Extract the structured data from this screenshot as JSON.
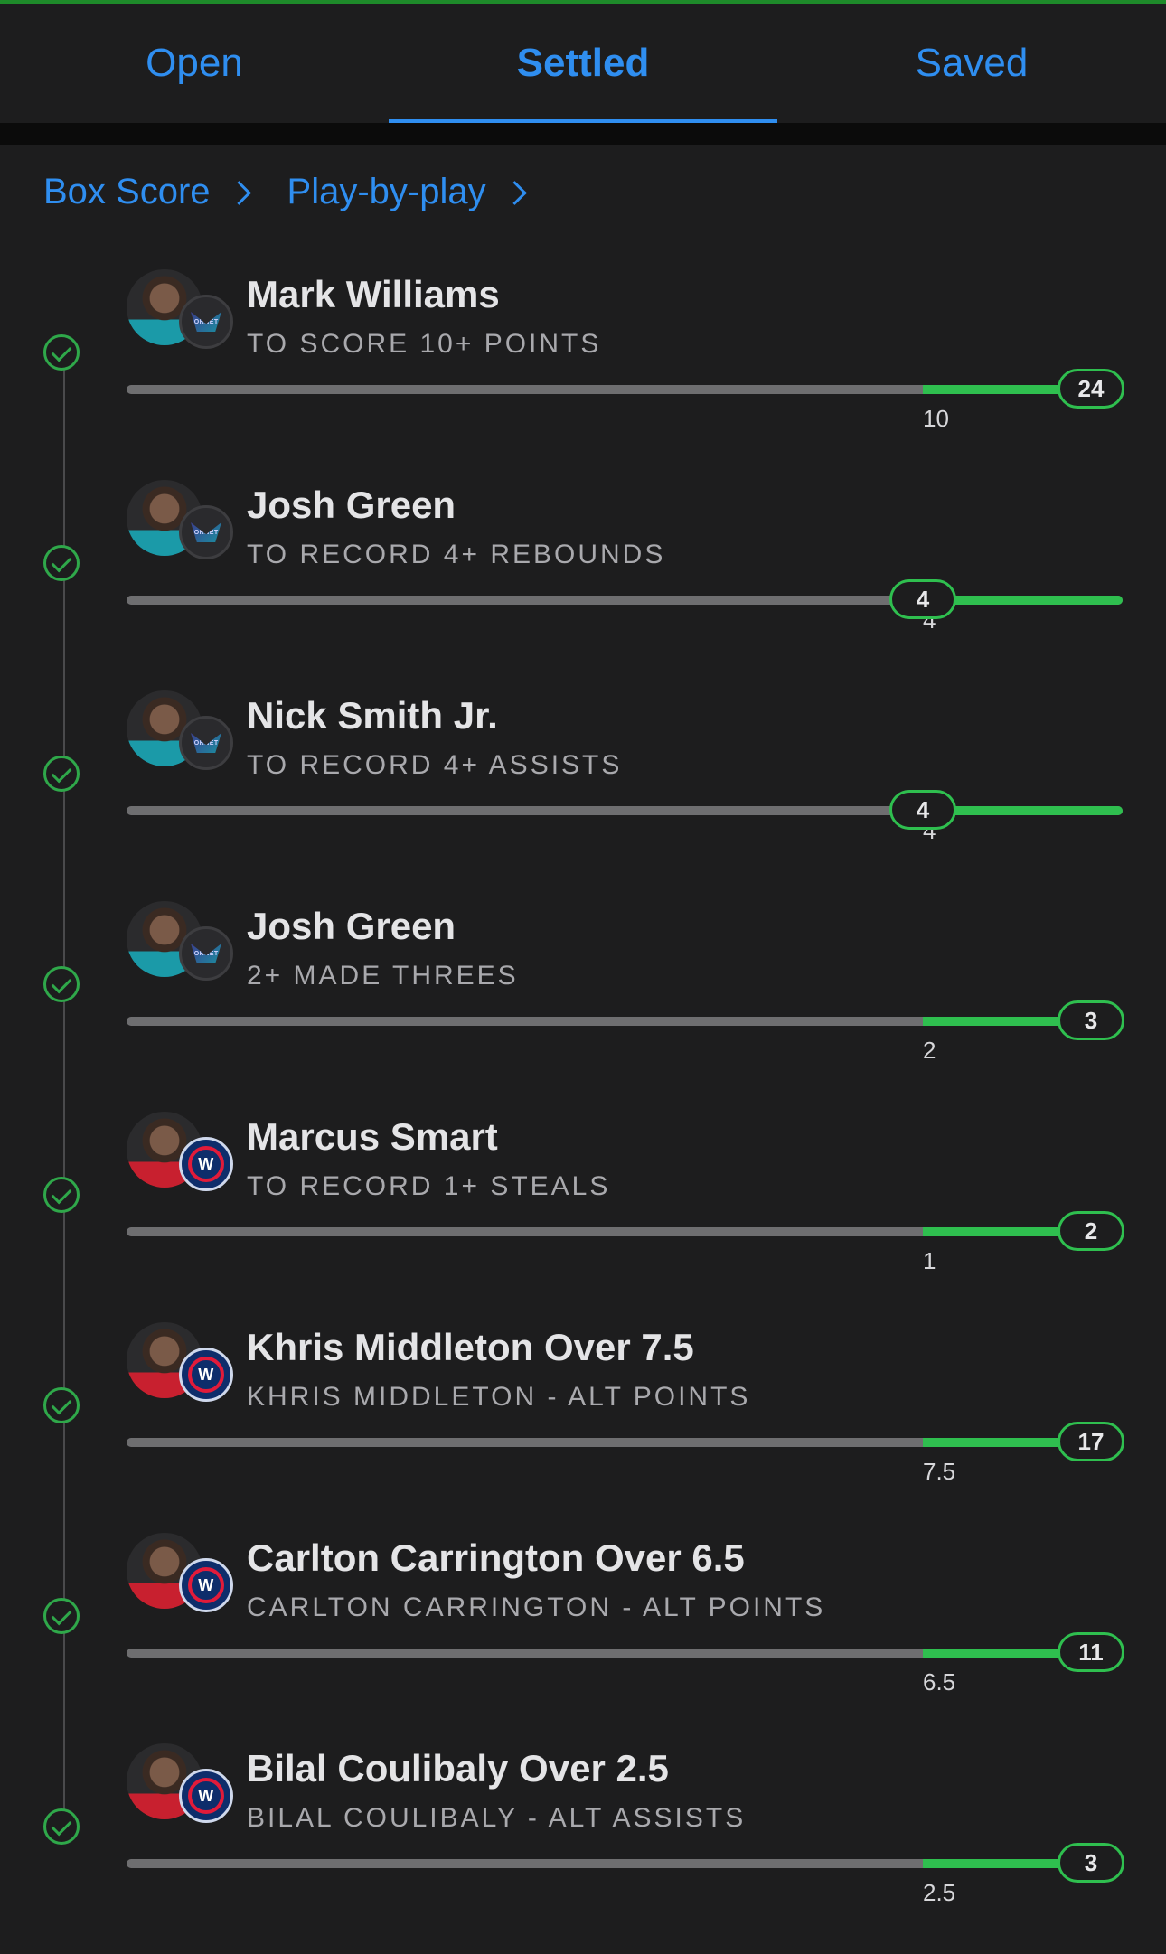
{
  "tabs": [
    {
      "label": "Open",
      "active": false
    },
    {
      "label": "Settled",
      "active": true
    },
    {
      "label": "Saved",
      "active": false
    }
  ],
  "links": {
    "box_score": "Box Score",
    "play_by_play": "Play-by-play"
  },
  "colors": {
    "accent": "#2f8ef0",
    "success": "#2fbf4f",
    "background": "#1d1d1e"
  },
  "legs": [
    {
      "player": "Mark Williams",
      "market": "TO SCORE 10+ POINTS",
      "threshold": "10",
      "result": "24",
      "team": "hornets",
      "status": "won"
    },
    {
      "player": "Josh Green",
      "market": "TO RECORD 4+ REBOUNDS",
      "threshold": "4",
      "result": "4",
      "team": "hornets",
      "status": "won"
    },
    {
      "player": "Nick Smith Jr.",
      "market": "TO RECORD 4+ ASSISTS",
      "threshold": "4",
      "result": "4",
      "team": "hornets",
      "status": "won"
    },
    {
      "player": "Josh Green",
      "market": "2+ MADE THREES",
      "threshold": "2",
      "result": "3",
      "team": "hornets",
      "status": "won"
    },
    {
      "player": "Marcus Smart",
      "market": "TO RECORD 1+ STEALS",
      "threshold": "1",
      "result": "2",
      "team": "wizards",
      "status": "won"
    },
    {
      "player": "Khris Middleton Over 7.5",
      "market": "KHRIS MIDDLETON - ALT POINTS",
      "threshold": "7.5",
      "result": "17",
      "team": "wizards",
      "status": "won"
    },
    {
      "player": "Carlton Carrington Over 6.5",
      "market": "CARLTON CARRINGTON - ALT POINTS",
      "threshold": "6.5",
      "result": "11",
      "team": "wizards",
      "status": "won"
    },
    {
      "player": "Bilal Coulibaly Over 2.5",
      "market": "BILAL COULIBALY - ALT ASSISTS",
      "threshold": "2.5",
      "result": "3",
      "team": "wizards",
      "status": "won"
    }
  ]
}
